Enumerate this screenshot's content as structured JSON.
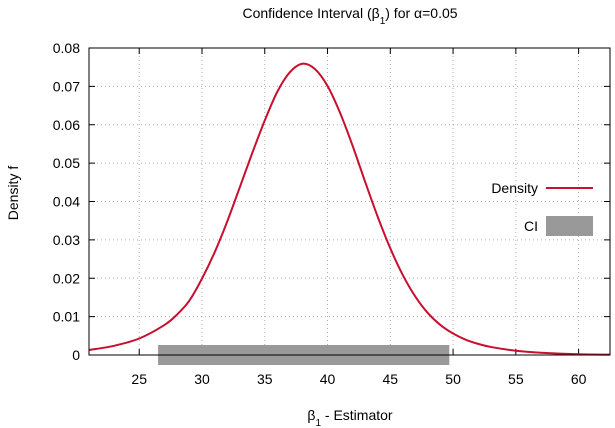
{
  "chart_data": {
    "type": "line",
    "title_prefix": "Confidence Interval (β",
    "title_sub": "1",
    "title_suffix": ") for α=0.05",
    "xlabel_prefix": "β",
    "xlabel_sub": "1",
    "xlabel_suffix": " - Estimator",
    "ylabel": "Density f",
    "xlim": [
      21,
      62.5
    ],
    "ylim": [
      0,
      0.08
    ],
    "x_ticks": [
      25,
      30,
      35,
      40,
      45,
      50,
      55,
      60
    ],
    "y_ticks": [
      0,
      0.01,
      0.02,
      0.03,
      0.04,
      0.05,
      0.06,
      0.07,
      0.08
    ],
    "x_tick_labels": [
      "25",
      "30",
      "35",
      "40",
      "45",
      "50",
      "55",
      "60"
    ],
    "y_tick_labels": [
      "0",
      "0.01",
      "0.02",
      "0.03",
      "0.04",
      "0.05",
      "0.06",
      "0.07",
      "0.08"
    ],
    "grid": true,
    "legend_position": "right",
    "series": [
      {
        "name": "Density",
        "kind": "line",
        "color": "#c8102e",
        "x": [
          21,
          23,
          25,
          27,
          28,
          29,
          30,
          31,
          32,
          33,
          34,
          35,
          36,
          37,
          38,
          39,
          40,
          41,
          42,
          43,
          44,
          45,
          46,
          47,
          48,
          49,
          50,
          51,
          52,
          53,
          55,
          57,
          60,
          62.5
        ],
        "y": [
          0.0013,
          0.0024,
          0.0043,
          0.0078,
          0.0105,
          0.0142,
          0.0199,
          0.0267,
          0.0347,
          0.0436,
          0.0526,
          0.0611,
          0.0686,
          0.0737,
          0.0759,
          0.0745,
          0.0701,
          0.0631,
          0.0545,
          0.0451,
          0.036,
          0.0278,
          0.0208,
          0.0152,
          0.0109,
          0.0078,
          0.0056,
          0.004,
          0.0029,
          0.0021,
          0.0011,
          0.0006,
          0.0002,
          0.0001
        ]
      },
      {
        "name": "CI",
        "kind": "interval",
        "color": "#999999",
        "lower": 26.5,
        "upper": 49.7
      }
    ]
  }
}
